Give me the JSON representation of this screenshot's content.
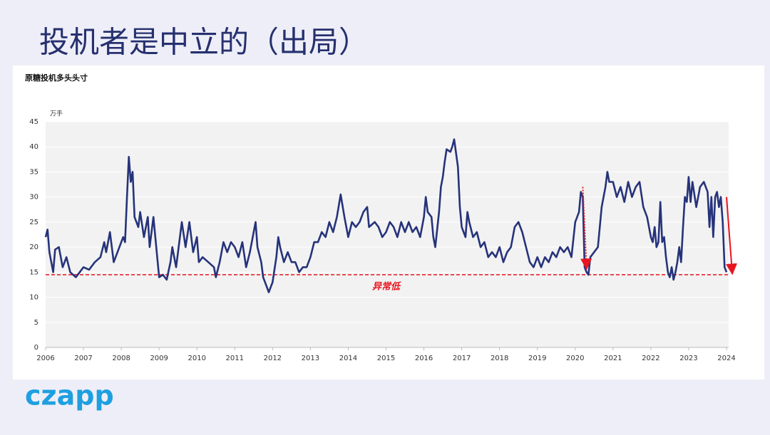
{
  "slide_title": "投机者是中立的（出局）",
  "logo": "czapp",
  "chart_data": {
    "type": "line",
    "title": "原糖投机多头头寸",
    "y_unit": "万手",
    "color": "#26337a",
    "grid": true,
    "xlim": [
      2006,
      2024
    ],
    "xticks": [
      2006,
      2007,
      2008,
      2009,
      2010,
      2011,
      2012,
      2013,
      2014,
      2015,
      2016,
      2017,
      2018,
      2019,
      2020,
      2021,
      2022,
      2023,
      2024
    ],
    "ylim": [
      0,
      45
    ],
    "yticks": [
      0,
      5,
      10,
      15,
      20,
      25,
      30,
      35,
      40,
      45
    ],
    "x": [
      2006.0,
      2006.05,
      2006.1,
      2006.2,
      2006.25,
      2006.35,
      2006.45,
      2006.55,
      2006.65,
      2006.8,
      2006.9,
      2007.0,
      2007.15,
      2007.3,
      2007.45,
      2007.55,
      2007.6,
      2007.7,
      2007.8,
      2007.9,
      2008.0,
      2008.05,
      2008.1,
      2008.15,
      2008.2,
      2008.25,
      2008.3,
      2008.35,
      2008.45,
      2008.5,
      2008.6,
      2008.7,
      2008.75,
      2008.85,
      2008.95,
      2009.0,
      2009.1,
      2009.2,
      2009.3,
      2009.35,
      2009.45,
      2009.5,
      2009.6,
      2009.7,
      2009.8,
      2009.9,
      2010.0,
      2010.05,
      2010.15,
      2010.3,
      2010.45,
      2010.5,
      2010.6,
      2010.7,
      2010.8,
      2010.9,
      2011.0,
      2011.1,
      2011.2,
      2011.3,
      2011.4,
      2011.5,
      2011.55,
      2011.6,
      2011.7,
      2011.75,
      2011.85,
      2011.9,
      2012.0,
      2012.1,
      2012.15,
      2012.2,
      2012.3,
      2012.4,
      2012.5,
      2012.6,
      2012.7,
      2012.8,
      2012.9,
      2013.0,
      2013.1,
      2013.2,
      2013.3,
      2013.4,
      2013.5,
      2013.6,
      2013.7,
      2013.8,
      2013.9,
      2014.0,
      2014.1,
      2014.2,
      2014.3,
      2014.4,
      2014.5,
      2014.55,
      2014.7,
      2014.8,
      2014.9,
      2015.0,
      2015.1,
      2015.2,
      2015.3,
      2015.4,
      2015.5,
      2015.6,
      2015.7,
      2015.8,
      2015.9,
      2016.0,
      2016.05,
      2016.1,
      2016.2,
      2016.25,
      2016.3,
      2016.4,
      2016.45,
      2016.5,
      2016.55,
      2016.6,
      2016.7,
      2016.75,
      2016.8,
      2016.9,
      2016.95,
      2017.0,
      2017.1,
      2017.15,
      2017.2,
      2017.3,
      2017.4,
      2017.5,
      2017.6,
      2017.7,
      2017.8,
      2017.9,
      2018.0,
      2018.1,
      2018.2,
      2018.3,
      2018.4,
      2018.5,
      2018.6,
      2018.7,
      2018.8,
      2018.9,
      2019.0,
      2019.1,
      2019.2,
      2019.3,
      2019.4,
      2019.5,
      2019.6,
      2019.7,
      2019.8,
      2019.9,
      2020.0,
      2020.1,
      2020.15,
      2020.2,
      2020.25,
      2020.3,
      2020.35,
      2020.4,
      2020.5,
      2020.6,
      2020.7,
      2020.8,
      2020.85,
      2020.9,
      2021.0,
      2021.1,
      2021.2,
      2021.3,
      2021.4,
      2021.5,
      2021.6,
      2021.7,
      2021.8,
      2021.9,
      2022.0,
      2022.05,
      2022.1,
      2022.15,
      2022.2,
      2022.25,
      2022.3,
      2022.35,
      2022.4,
      2022.45,
      2022.5,
      2022.55,
      2022.6,
      2022.65,
      2022.7,
      2022.75,
      2022.8,
      2022.85,
      2022.9,
      2022.95,
      2023.0,
      2023.05,
      2023.1,
      2023.2,
      2023.3,
      2023.4,
      2023.5,
      2023.55,
      2023.6,
      2023.65,
      2023.7,
      2023.75,
      2023.8,
      2023.85,
      2023.9,
      2023.95,
      2024.0
    ],
    "values": [
      22,
      23.5,
      19,
      15,
      19.5,
      20,
      16,
      18,
      15,
      14,
      15,
      16,
      15.5,
      17,
      18,
      21,
      19,
      23,
      17,
      19,
      21,
      22,
      21,
      30,
      38,
      33,
      35,
      26,
      24,
      27,
      22,
      26,
      20,
      26,
      18,
      14,
      14.5,
      13.5,
      17,
      20,
      16,
      19,
      25,
      20,
      25,
      19,
      22,
      17,
      18,
      17,
      16,
      14,
      17,
      21,
      19,
      21,
      20,
      18,
      21,
      16,
      19,
      23,
      25,
      20,
      17,
      14,
      12,
      11,
      13,
      18,
      22,
      20,
      17,
      19,
      17,
      17,
      15,
      16,
      16,
      18,
      21,
      21,
      23,
      22,
      25,
      23,
      26,
      30.5,
      26,
      22,
      25,
      24,
      25,
      27,
      28,
      24,
      25,
      24,
      22,
      23,
      25,
      24,
      22,
      25,
      23,
      25,
      23,
      24,
      22,
      26,
      30,
      27,
      26,
      22,
      20,
      27,
      32,
      34,
      37,
      39.5,
      39,
      40,
      41.5,
      36,
      28,
      24,
      22,
      27,
      25,
      22,
      23,
      20,
      21,
      18,
      19,
      18,
      20,
      17,
      19,
      20,
      24,
      25,
      23,
      20,
      17,
      16,
      18,
      16,
      18,
      17,
      19,
      18,
      20,
      19,
      20,
      18,
      25,
      27,
      31,
      30,
      16,
      15,
      14.5,
      18,
      19,
      20,
      28,
      32,
      35,
      33,
      33,
      30,
      32,
      29,
      33,
      30,
      32,
      33,
      28,
      26,
      22,
      21,
      24,
      20,
      21,
      29,
      21,
      22,
      18,
      15,
      14,
      16,
      13.5,
      15,
      17,
      20,
      17,
      24,
      30,
      29,
      34,
      29,
      33,
      28,
      32,
      33,
      31,
      24,
      30,
      22,
      30,
      31,
      28,
      30,
      25,
      16,
      15
    ],
    "reference_line": {
      "value": 14.5,
      "label": "异常低",
      "color": "#e8141e"
    },
    "arrows": [
      {
        "x": [
          2020.2,
          2020.3
        ],
        "y": [
          32,
          16
        ],
        "color": "#e8141e",
        "dashed": true
      },
      {
        "x": [
          2024.0,
          2024.15
        ],
        "y": [
          30,
          15
        ],
        "color": "#e8141e",
        "dashed": false
      }
    ]
  }
}
